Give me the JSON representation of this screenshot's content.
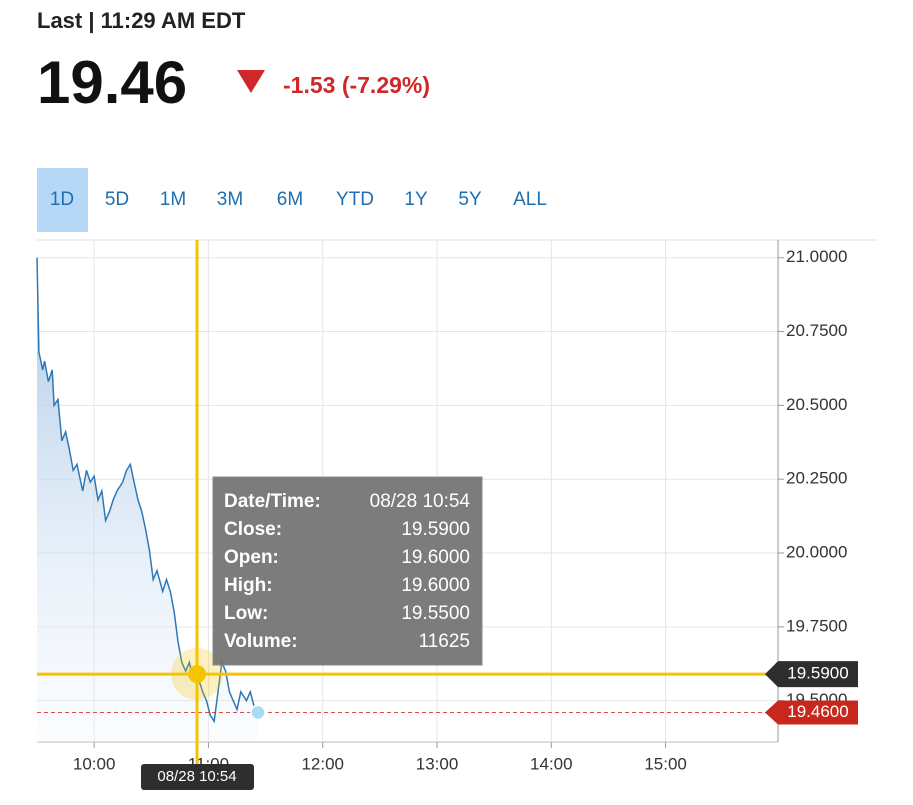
{
  "header": {
    "status": "Last | 11:29 AM EDT",
    "price": "19.46",
    "change": "-1.53 (-7.29%)"
  },
  "ranges": {
    "items": [
      "1D",
      "5D",
      "1M",
      "3M",
      "6M",
      "YTD",
      "1Y",
      "5Y",
      "ALL"
    ],
    "selected": "1D"
  },
  "chart_data": {
    "type": "line",
    "x": [
      570,
      571,
      573,
      574,
      576,
      578,
      579,
      581,
      583,
      585,
      587,
      589,
      591,
      594,
      596,
      598,
      600,
      602,
      604,
      606,
      608,
      610,
      612,
      615,
      617,
      619,
      621,
      623,
      625,
      627,
      629,
      631,
      633,
      636,
      638,
      640,
      642,
      644,
      646,
      648,
      650,
      652,
      654,
      657,
      659,
      661,
      663,
      665,
      667,
      669,
      671,
      673,
      675,
      677,
      680,
      682,
      684,
      686
    ],
    "series": [
      {
        "color": "#2f78b7",
        "values": [
          21.0,
          20.68,
          20.62,
          20.65,
          20.58,
          20.62,
          20.5,
          20.52,
          20.38,
          20.41,
          20.35,
          20.28,
          20.3,
          20.21,
          20.28,
          20.24,
          20.26,
          20.18,
          20.21,
          20.11,
          20.14,
          20.18,
          20.21,
          20.24,
          20.28,
          20.3,
          20.24,
          20.18,
          20.14,
          20.08,
          20.01,
          19.91,
          19.94,
          19.87,
          19.91,
          19.87,
          19.8,
          19.7,
          19.63,
          19.6,
          19.63,
          19.57,
          19.59,
          19.53,
          19.5,
          19.45,
          19.43,
          19.53,
          19.63,
          19.6,
          19.53,
          19.5,
          19.47,
          19.53,
          19.5,
          19.53,
          19.48,
          19.46
        ]
      }
    ],
    "xlim": [
      570,
      959
    ],
    "ylim": [
      19.36,
      21.06
    ],
    "xticks": [
      {
        "value": 600,
        "label": "10:00"
      },
      {
        "value": 660,
        "label": "11:00"
      },
      {
        "value": 720,
        "label": "12:00"
      },
      {
        "value": 780,
        "label": "13:00"
      },
      {
        "value": 840,
        "label": "14:00"
      },
      {
        "value": 900,
        "label": "15:00"
      }
    ],
    "yticks": [
      {
        "value": 21,
        "label": "21.0000"
      },
      {
        "value": 20.75,
        "label": "20.7500"
      },
      {
        "value": 20.5,
        "label": "20.5000"
      },
      {
        "value": 20.25,
        "label": "20.2500"
      },
      {
        "value": 20,
        "label": "20.0000"
      },
      {
        "value": 19.75,
        "label": "19.7500"
      },
      {
        "value": 19.5,
        "label": "19.5000"
      }
    ],
    "grid": true,
    "crosshair": {
      "x": 654,
      "x_label": "08/28 10:54",
      "value": 19.59,
      "value_label": "19.5900",
      "color": "#f5c400"
    },
    "last": {
      "x": 686,
      "value": 19.46,
      "value_label": "19.4600",
      "color": "#c8281c"
    },
    "tooltip": {
      "rows": [
        [
          "Date/Time:",
          "08/28 10:54"
        ],
        [
          "Close:",
          "19.5900"
        ],
        [
          "Open:",
          "19.6000"
        ],
        [
          "High:",
          "19.6000"
        ],
        [
          "Low:",
          "19.5500"
        ],
        [
          "Volume:",
          "11625"
        ]
      ]
    }
  }
}
